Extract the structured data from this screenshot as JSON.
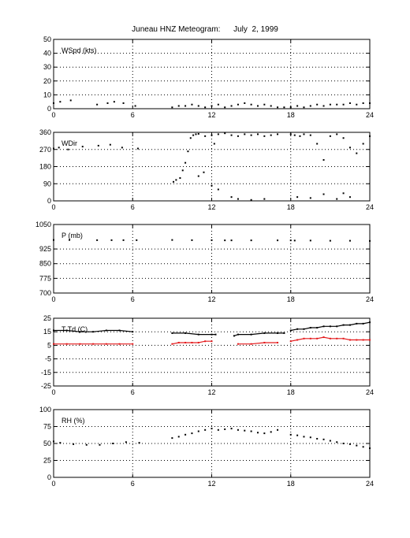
{
  "figure": {
    "title": "Juneau HNZ Meteogram:      July  2, 1999"
  },
  "chart_data": [
    {
      "type": "scatter",
      "label": "WSpd (kts)",
      "xlim": [
        0,
        24
      ],
      "xticks": [
        0,
        6,
        12,
        18,
        24
      ],
      "ylim": [
        0,
        50
      ],
      "yticks": [
        0,
        10,
        20,
        30,
        40,
        50
      ],
      "grid": true,
      "series": [
        {
          "color": "#000000",
          "segments": [
            {
              "x": [
                0.0,
                0.5,
                1.3,
                3.3,
                4.1,
                4.6,
                5.3,
                6.2
              ],
              "y": [
                4,
                5,
                6,
                3,
                4,
                5,
                4,
                2
              ]
            },
            {
              "x": [
                9.0,
                9.5,
                10.0,
                10.5,
                11.0,
                11.5,
                12.0,
                12.5,
                13.0,
                13.5,
                14.0,
                14.5,
                15.0,
                15.5,
                16.0,
                16.5,
                17.0,
                17.5
              ],
              "y": [
                1,
                2,
                2,
                3,
                2,
                1,
                2,
                3,
                1,
                2,
                3,
                4,
                3,
                2,
                3,
                2,
                1,
                1
              ]
            },
            {
              "x": [
                18.0,
                18.5,
                19.0,
                19.5,
                20.0,
                20.5,
                21.0,
                21.5,
                22.0,
                22.5,
                23.0,
                23.5,
                24.0
              ],
              "y": [
                1,
                2,
                1,
                2,
                3,
                2,
                3,
                3,
                3,
                4,
                3,
                4,
                4
              ]
            }
          ]
        }
      ]
    },
    {
      "type": "scatter",
      "label": "WDir",
      "xlim": [
        0,
        24
      ],
      "xticks": [
        0,
        6,
        12,
        18,
        24
      ],
      "ylim": [
        0,
        360
      ],
      "yticks": [
        0,
        90,
        180,
        270,
        360
      ],
      "grid": true,
      "series": [
        {
          "color": "#000000",
          "segments": [
            {
              "x": [
                0.0,
                0.4,
                1.1,
                2.2,
                3.4,
                4.3,
                5.2,
                6.4
              ],
              "y": [
                275,
                280,
                270,
                285,
                290,
                295,
                280,
                275
              ]
            },
            {
              "x": [
                9.1,
                9.3,
                9.6,
                9.8,
                10.0,
                10.2,
                10.4,
                10.6,
                10.8,
                11.0,
                11.5,
                12.0,
                12.2,
                12.5,
                13.0,
                13.5,
                14.0,
                14.5,
                15.0,
                15.5,
                16.0,
                16.5,
                17.0
              ],
              "y": [
                100,
                110,
                120,
                160,
                200,
                260,
                330,
                345,
                350,
                352,
                340,
                345,
                300,
                350,
                355,
                345,
                340,
                350,
                345,
                350,
                340,
                345,
                350
              ]
            },
            {
              "x": [
                11.0,
                11.4,
                12.0,
                12.5,
                13.5,
                14.0,
                15.0,
                16.0
              ],
              "y": [
                130,
                150,
                80,
                60,
                20,
                10,
                5,
                10
              ]
            },
            {
              "x": [
                18.0,
                18.3,
                18.7,
                19.0,
                19.5,
                20.0,
                20.5,
                21.0,
                21.5,
                22.0,
                22.5,
                23.0,
                23.5,
                24.0
              ],
              "y": [
                350,
                345,
                340,
                350,
                345,
                300,
                215,
                340,
                350,
                330,
                280,
                250,
                300,
                340
              ]
            },
            {
              "x": [
                18.5,
                19.5,
                20.5,
                21.5,
                22.0,
                22.5
              ],
              "y": [
                20,
                15,
                35,
                10,
                40,
                20
              ]
            }
          ]
        }
      ]
    },
    {
      "type": "scatter",
      "label": "P (mb)",
      "xlim": [
        0,
        24
      ],
      "xticks": [
        0,
        6,
        12,
        18,
        24
      ],
      "ylim": [
        700,
        1050
      ],
      "yticks": [
        700,
        775,
        850,
        925,
        1050
      ],
      "grid": true,
      "series": [
        {
          "color": "#000000",
          "segments": [
            {
              "x": [
                0.0,
                1.2,
                3.3,
                4.4,
                5.3,
                6.3
              ],
              "y": [
                971,
                971,
                970,
                970,
                970,
                970
              ]
            },
            {
              "x": [
                9.0,
                10.5,
                12.0,
                13.0,
                13.5,
                15.0,
                17.0,
                18.0
              ],
              "y": [
                971,
                970,
                970,
                969,
                969,
                969,
                969,
                969
              ]
            },
            {
              "x": [
                18.3,
                19.5,
                21.0,
                22.5,
                24.0
              ],
              "y": [
                968,
                968,
                967,
                967,
                966
              ]
            }
          ]
        }
      ]
    },
    {
      "type": "line",
      "label": "T Td (C)",
      "xlim": [
        0,
        24
      ],
      "xticks": [
        0,
        6,
        12,
        18,
        24
      ],
      "ylim": [
        -25,
        25
      ],
      "yticks": [
        -25,
        -15,
        -5,
        5,
        15,
        25
      ],
      "grid": true,
      "series": [
        {
          "color": "#000000",
          "segments": [
            {
              "x": [
                0.0,
                1.0,
                2.0,
                3.0,
                4.0,
                5.0,
                6.0
              ],
              "y": [
                16,
                16,
                15,
                15,
                16,
                16,
                15
              ]
            },
            {
              "x": [
                9.0,
                10.0,
                11.0,
                12.0,
                12.3
              ],
              "y": [
                14,
                14,
                13,
                13,
                13
              ]
            },
            {
              "x": [
                13.7,
                14.0,
                15.0,
                16.0,
                17.0,
                17.5
              ],
              "y": [
                12,
                13,
                13,
                14,
                14,
                14
              ]
            },
            {
              "x": [
                18.0,
                18.5,
                19.0,
                19.5,
                20.0,
                20.5,
                21.0,
                21.5,
                22.0,
                22.5,
                23.0,
                23.5,
                24.0
              ],
              "y": [
                16,
                17,
                17,
                18,
                18,
                19,
                19,
                19,
                20,
                20,
                21,
                21,
                22
              ]
            }
          ]
        },
        {
          "color": "#e41a1c",
          "segments": [
            {
              "x": [
                0.0,
                1.0,
                2.0,
                3.0,
                4.0,
                5.0,
                6.0
              ],
              "y": [
                6,
                6,
                6,
                6,
                6,
                6,
                6
              ]
            },
            {
              "x": [
                9.0,
                9.5,
                10.0,
                10.5,
                11.0,
                11.5,
                12.0
              ],
              "y": [
                6,
                7,
                7,
                7,
                7,
                8,
                8
              ]
            },
            {
              "x": [
                14.0,
                15.0,
                16.0,
                17.0
              ],
              "y": [
                6,
                6,
                7,
                7
              ]
            },
            {
              "x": [
                18.0,
                18.5,
                19.0,
                19.5,
                20.0,
                20.5,
                21.0,
                21.5,
                22.0,
                22.5,
                23.0,
                23.5,
                24.0
              ],
              "y": [
                8,
                9,
                10,
                10,
                10,
                11,
                10,
                10,
                10,
                9,
                9,
                9,
                9
              ]
            }
          ]
        }
      ]
    },
    {
      "type": "scatter",
      "label": "RH (%)",
      "xlim": [
        0,
        24
      ],
      "xticks": [
        0,
        6,
        12,
        18,
        24
      ],
      "ylim": [
        0,
        100
      ],
      "yticks": [
        0,
        25,
        50,
        75,
        100
      ],
      "grid": true,
      "series": [
        {
          "color": "#000000",
          "segments": [
            {
              "x": [
                0.0,
                0.5,
                1.5,
                2.5,
                3.5,
                4.5,
                5.5,
                6.5
              ],
              "y": [
                53,
                51,
                49,
                48,
                48,
                50,
                52,
                51
              ]
            },
            {
              "x": [
                9.0,
                9.5,
                10.0,
                10.5,
                11.0,
                11.5,
                12.0,
                12.5,
                13.0,
                13.5,
                14.0,
                14.5,
                15.0,
                15.5,
                16.0,
                16.5,
                17.0
              ],
              "y": [
                58,
                60,
                63,
                65,
                68,
                70,
                72,
                70,
                71,
                72,
                70,
                69,
                68,
                66,
                65,
                67,
                70
              ]
            },
            {
              "x": [
                18.0,
                18.5,
                19.0,
                19.5,
                20.0,
                20.5,
                21.0,
                21.5,
                22.0,
                22.5,
                23.0,
                23.5,
                24.0
              ],
              "y": [
                63,
                62,
                60,
                59,
                57,
                56,
                54,
                52,
                50,
                49,
                47,
                45,
                43
              ]
            }
          ]
        }
      ]
    }
  ]
}
